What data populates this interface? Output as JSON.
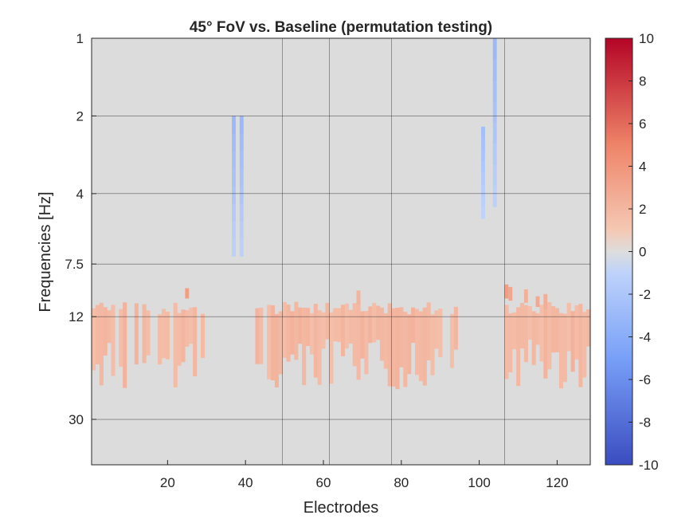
{
  "chart_data": {
    "type": "heatmap",
    "title": "45° FoV vs. Baseline (permutation testing)",
    "xlabel": "Electrodes",
    "ylabel": "Frequencies [Hz]",
    "xlim": [
      1,
      128
    ],
    "xticks": [
      20,
      40,
      60,
      80,
      100,
      120
    ],
    "yticks": [
      1,
      2,
      4,
      7.5,
      12,
      30
    ],
    "ytick_labels": [
      "1",
      "2",
      "4",
      "7.5",
      "12",
      "30"
    ],
    "ylim": [
      1,
      45
    ],
    "y_scale": "log",
    "grid": true,
    "vertical_grid_electrodes": [
      50,
      62,
      78,
      107
    ],
    "colorbar": {
      "colormap": "coolwarm",
      "clim": [
        -10,
        10
      ],
      "ticks": [
        -10,
        -8,
        -6,
        -4,
        -2,
        0,
        2,
        4,
        6,
        8,
        10
      ],
      "tick_labels": [
        "-10",
        "-8",
        "-6",
        "-4",
        "-2",
        "0",
        "2",
        "4",
        "6",
        "8",
        "10"
      ]
    },
    "background_color": "#dcdcdc",
    "negative_clusters": [
      {
        "electrode": 37,
        "f_low": 2,
        "f_high": 7,
        "value": -3.0
      },
      {
        "electrode": 39,
        "f_low": 2,
        "f_high": 7,
        "value": -3.0
      },
      {
        "electrode": 101,
        "f_low": 2.2,
        "f_high": 5,
        "value": -2.5
      },
      {
        "electrode": 104,
        "f_low": 1,
        "f_high": 4.5,
        "value": -3.0
      }
    ],
    "positive_cluster": {
      "f_low": 10.5,
      "f_high": 14.5,
      "value": 1.5,
      "hot_spots": [
        {
          "electrode": 25,
          "f_low": 9.3,
          "f_high": 10.2,
          "value": 3.5
        },
        {
          "electrode": 107,
          "f_low": 9,
          "f_high": 10.2,
          "value": 3.5
        },
        {
          "electrode": 108,
          "f_low": 9.2,
          "f_high": 10.4,
          "value": 3.0
        },
        {
          "electrode": 115,
          "f_low": 10.0,
          "f_high": 11.0,
          "value": 2.8
        },
        {
          "electrode": 117,
          "f_low": 9.8,
          "f_high": 11.2,
          "value": 2.5
        },
        {
          "electrode": 112,
          "f_low": 9.4,
          "f_high": 10.6,
          "value": 2.4
        },
        {
          "electrode": 69,
          "f_low": 9.5,
          "f_high": 10.8,
          "value": 2.2
        }
      ]
    }
  }
}
